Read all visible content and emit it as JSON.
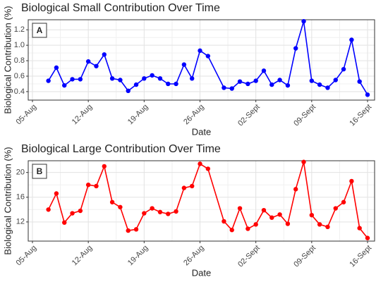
{
  "chart_data": [
    {
      "type": "line",
      "title": "Biological Small Contribution Over Time",
      "panel_label": "A",
      "xlabel": "Date",
      "ylabel": "Biological Contribution (%)",
      "color": "#0000ff",
      "grid": true,
      "x": [
        "07-Aug",
        "08-Aug",
        "09-Aug",
        "10-Aug",
        "11-Aug",
        "12-Aug",
        "13-Aug",
        "14-Aug",
        "15-Aug",
        "16-Aug",
        "17-Aug",
        "18-Aug",
        "19-Aug",
        "20-Aug",
        "21-Aug",
        "22-Aug",
        "23-Aug",
        "24-Aug",
        "25-Aug",
        "26-Aug",
        "27-Aug",
        "29-Aug",
        "30-Aug",
        "31-Aug",
        "01-Sept",
        "02-Sept",
        "03-Sept",
        "04-Sept",
        "05-Sept",
        "06-Sept",
        "07-Sept",
        "08-Sept",
        "09-Sept",
        "10-Sept",
        "11-Sept",
        "12-Sept",
        "13-Sept",
        "14-Sept",
        "15-Sept",
        "16-Sept"
      ],
      "values": [
        0.54,
        0.71,
        0.48,
        0.56,
        0.56,
        0.79,
        0.73,
        0.88,
        0.57,
        0.55,
        0.41,
        0.49,
        0.57,
        0.61,
        0.57,
        0.5,
        0.5,
        0.75,
        0.57,
        0.93,
        0.86,
        0.45,
        0.44,
        0.53,
        0.5,
        0.54,
        0.67,
        0.49,
        0.55,
        0.48,
        0.96,
        1.31,
        0.54,
        0.49,
        0.45,
        0.55,
        0.69,
        1.07,
        0.53,
        0.36
      ],
      "xlim": [
        "05-Aug",
        "16-Sept"
      ],
      "xticks": [
        "05-Aug",
        "12-Aug",
        "19-Aug",
        "26-Aug",
        "02-Sept",
        "09-Sept",
        "16-Sept"
      ],
      "ylim": [
        0.29,
        1.33
      ],
      "yticks": [
        0.4,
        0.6,
        0.8,
        {
          "value": 1.0,
          "label": "1.0"
        },
        1.2
      ]
    },
    {
      "type": "line",
      "title": "Biological Large Contribution Over Time",
      "panel_label": "B",
      "xlabel": "Date",
      "ylabel": "Biological Contribution (%)",
      "color": "#ff0000",
      "grid": true,
      "x": [
        "07-Aug",
        "08-Aug",
        "09-Aug",
        "10-Aug",
        "11-Aug",
        "12-Aug",
        "13-Aug",
        "14-Aug",
        "15-Aug",
        "16-Aug",
        "17-Aug",
        "18-Aug",
        "19-Aug",
        "20-Aug",
        "21-Aug",
        "22-Aug",
        "23-Aug",
        "24-Aug",
        "25-Aug",
        "26-Aug",
        "27-Aug",
        "29-Aug",
        "30-Aug",
        "31-Aug",
        "01-Sept",
        "02-Sept",
        "03-Sept",
        "04-Sept",
        "05-Sept",
        "06-Sept",
        "07-Sept",
        "08-Sept",
        "09-Sept",
        "10-Sept",
        "11-Sept",
        "12-Sept",
        "13-Sept",
        "14-Sept",
        "15-Sept",
        "16-Sept"
      ],
      "values": [
        14.0,
        16.6,
        11.9,
        13.4,
        13.8,
        18.0,
        17.8,
        21.0,
        15.2,
        14.4,
        10.6,
        10.8,
        13.4,
        14.2,
        13.6,
        13.3,
        13.7,
        17.5,
        17.8,
        21.4,
        20.6,
        12.1,
        10.7,
        14.2,
        10.9,
        11.6,
        13.9,
        12.7,
        13.2,
        11.7,
        17.3,
        21.7,
        13.1,
        11.6,
        11.2,
        14.2,
        15.2,
        18.6,
        11.0,
        9.4
      ],
      "xlim": [
        "05-Aug",
        "16-Sept"
      ],
      "xticks": [
        "05-Aug",
        "12-Aug",
        "19-Aug",
        "26-Aug",
        "02-Sept",
        "09-Sept",
        "16-Sept"
      ],
      "ylim": [
        8.9,
        21.9
      ],
      "yticks": [
        12,
        16,
        20
      ]
    }
  ]
}
